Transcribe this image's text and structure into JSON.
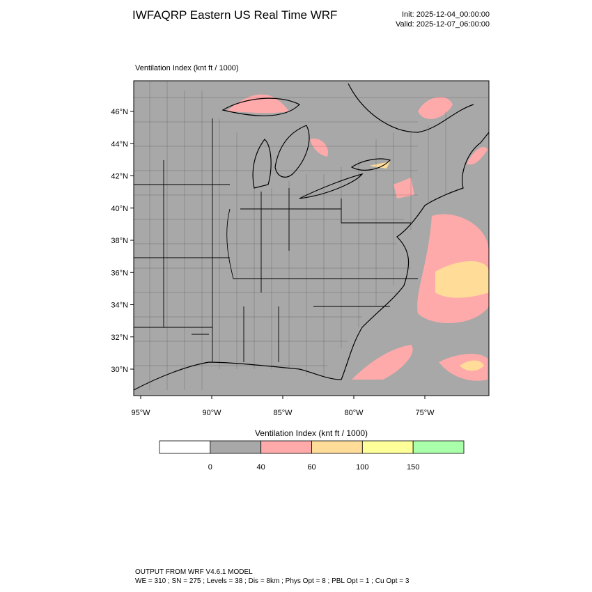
{
  "header": {
    "title": "IWFAQRP Eastern US Real Time WRF",
    "init": "Init: 2025-12-04_00:00:00",
    "valid": "Valid: 2025-12-07_06:00:00"
  },
  "map": {
    "label": "Ventilation Index   (knt ft / 1000)",
    "lat_labels": [
      "46°N",
      "44°N",
      "42°N",
      "40°N",
      "38°N",
      "36°N",
      "34°N",
      "32°N",
      "30°N"
    ],
    "lon_labels": [
      "95°W",
      "90°W",
      "85°W",
      "80°W",
      "75°W"
    ]
  },
  "colorbar": {
    "title": "Ventilation Index  (knt ft / 1000)",
    "levels": [
      "0",
      "40",
      "60",
      "100",
      "150"
    ],
    "colors": [
      "#ffffff",
      "#a8a8a8",
      "#ffaaaa",
      "#ffdd99",
      "#ffff99",
      "#aaffaa"
    ]
  },
  "footer": {
    "line1": "OUTPUT FROM WRF V4.6.1 MODEL",
    "line2": "WE = 310 ; SN = 275 ; Levels = 38 ; Dis = 8km ; Phys Opt = 8 ; PBL Opt = 1 ; Cu Opt = 3"
  }
}
